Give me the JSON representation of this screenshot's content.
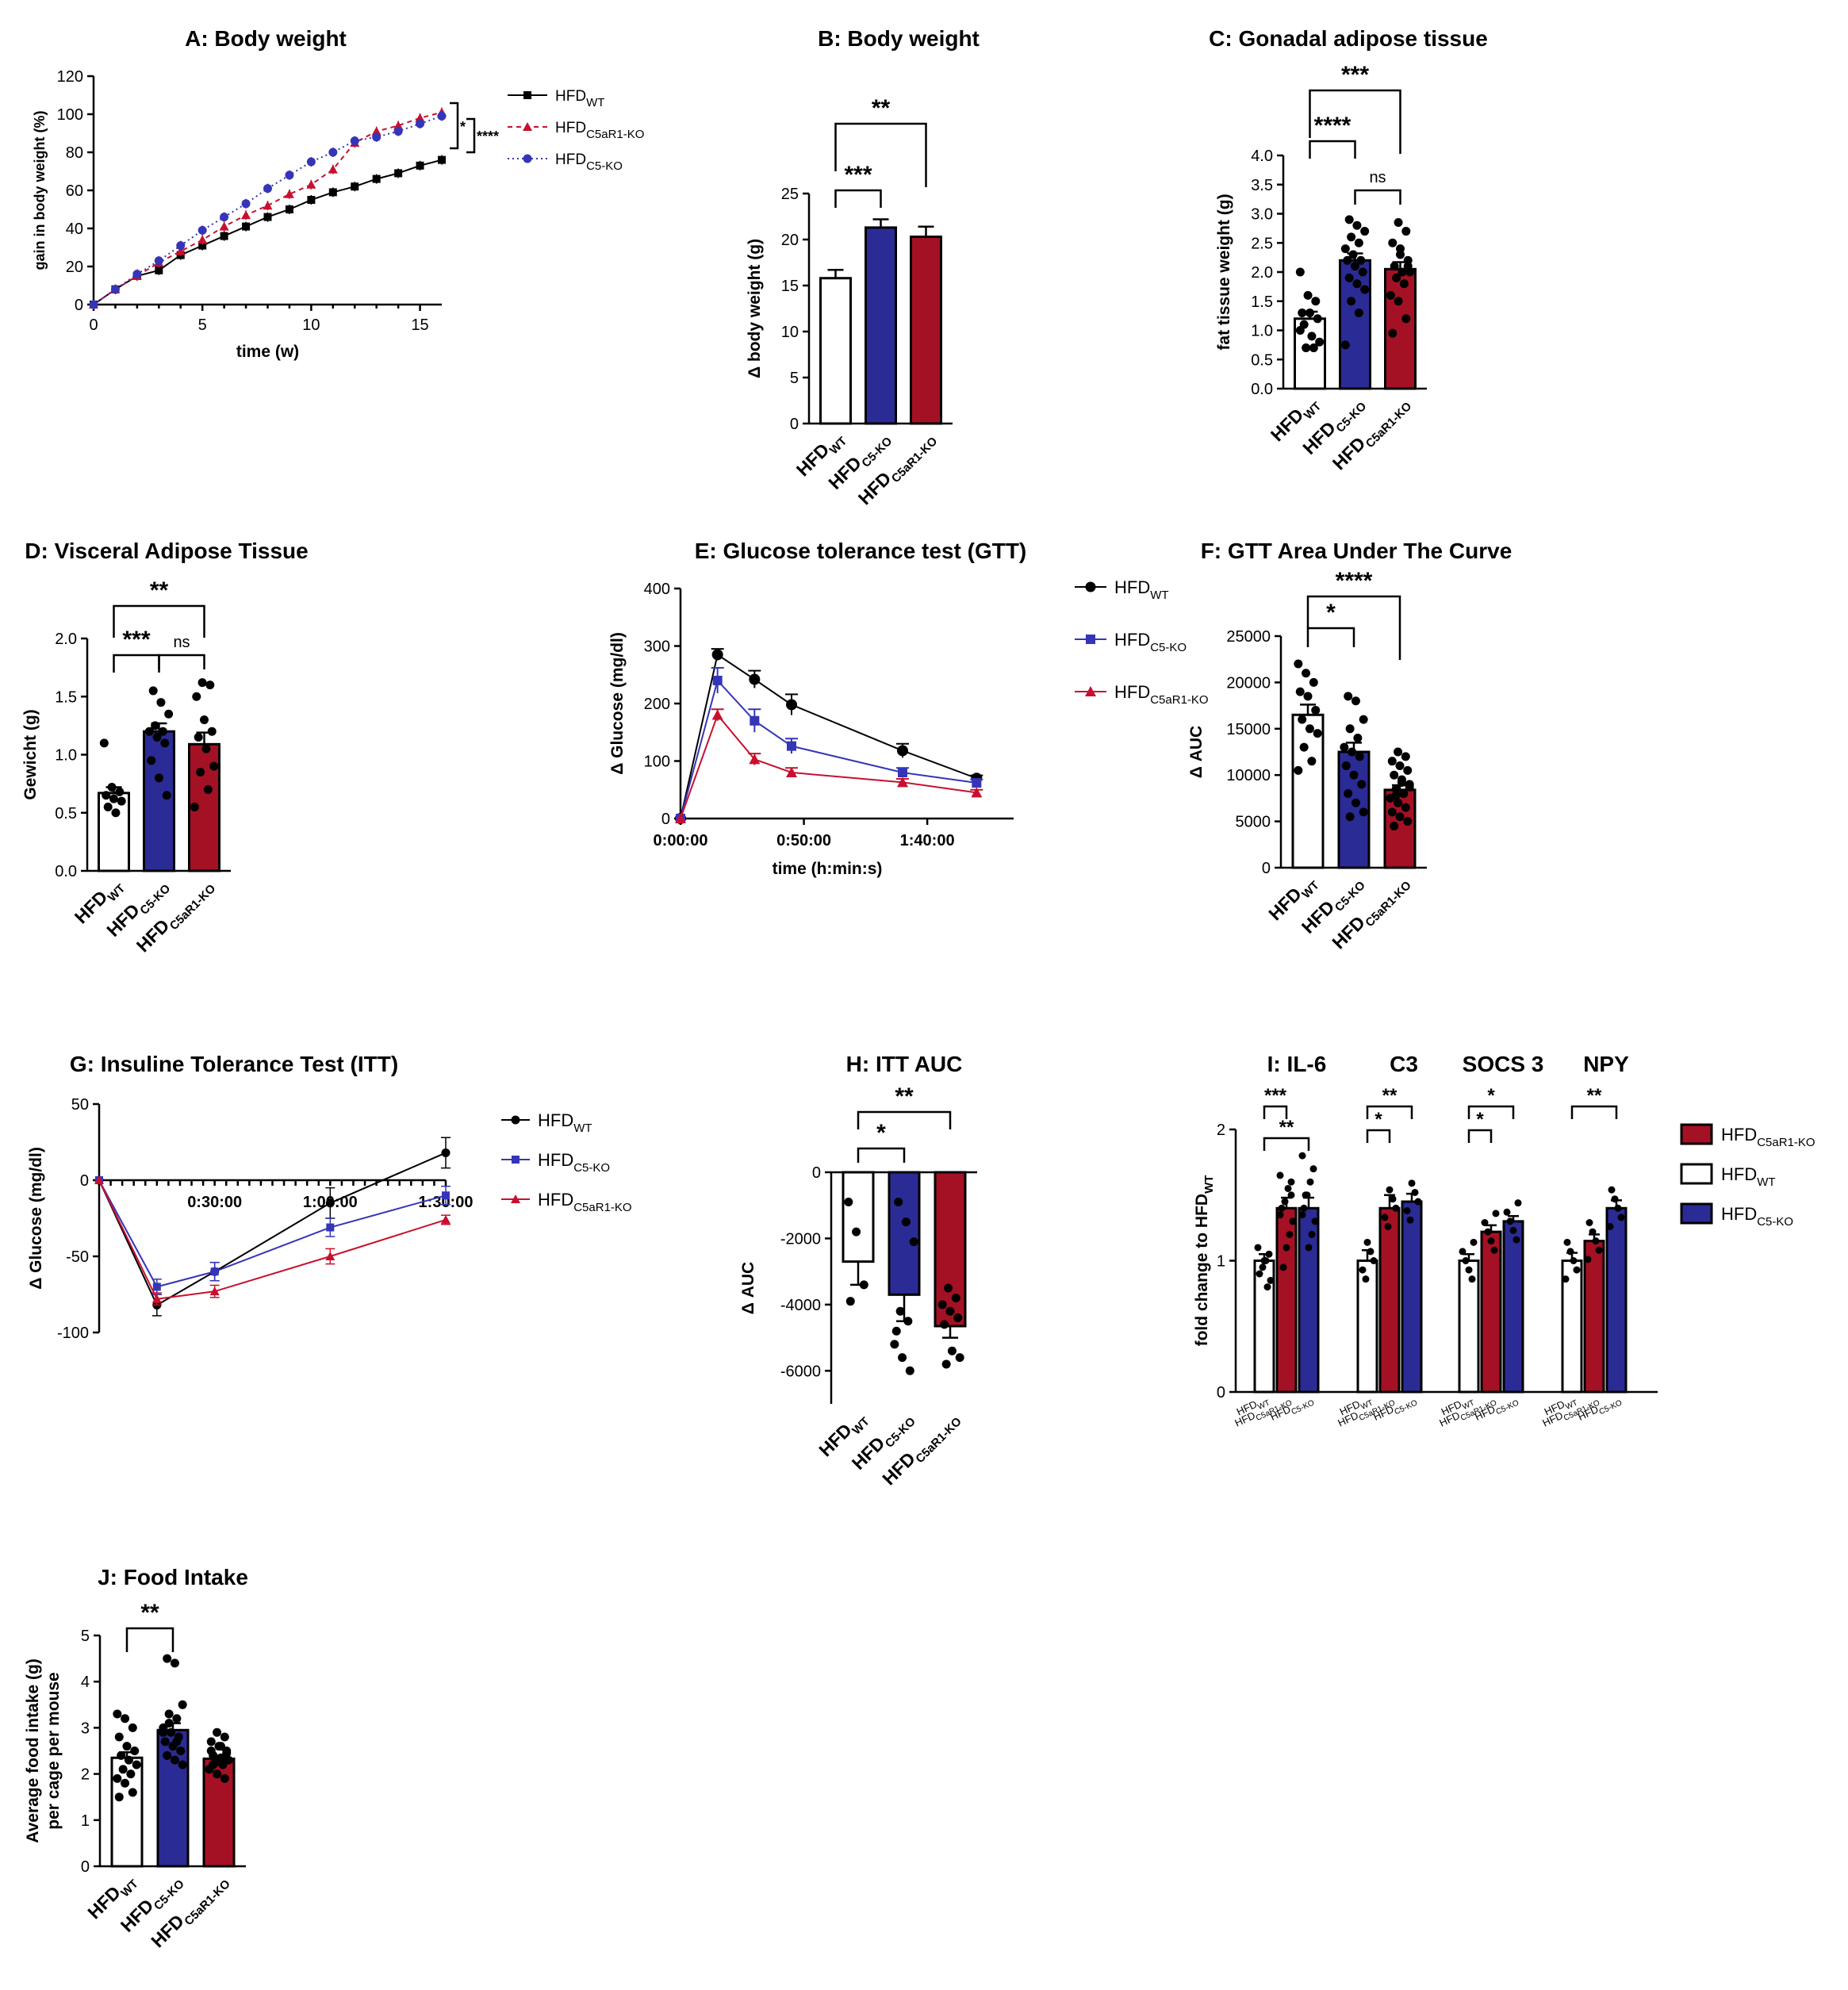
{
  "colors": {
    "wt": "#ffffff",
    "c5": "#2b2b96",
    "c5ar1": "#a51124",
    "wt_line": "#000000",
    "c5_line": "#3535b8",
    "c5ar1_line": "#c8102e"
  },
  "chart_data": [
    {
      "id": "A",
      "type": "line",
      "title": "A: Body weight",
      "xlabel": "time (w)",
      "ylabel": "gain in body weight (%)",
      "xlim": [
        0,
        16
      ],
      "ylim": [
        0,
        120
      ],
      "xticks": [
        "0",
        "5",
        "10",
        "15"
      ],
      "yticks": [
        "0",
        "20",
        "40",
        "60",
        "80",
        "100",
        "120"
      ],
      "x": [
        0,
        1,
        2,
        3,
        4,
        5,
        6,
        7,
        8,
        9,
        10,
        11,
        12,
        13,
        14,
        15,
        16
      ],
      "series": [
        {
          "name": "HFD",
          "sub": "WT",
          "color": "#000000",
          "marker": "square",
          "dash": "",
          "values": [
            0,
            8,
            15,
            18,
            26,
            31,
            36,
            41,
            46,
            50,
            55,
            59,
            62,
            66,
            69,
            73,
            76
          ]
        },
        {
          "name": "HFD",
          "sub": "C5aR1-KO",
          "color": "#c8102e",
          "marker": "triangle",
          "dash": "6,5",
          "values": [
            0,
            8,
            15,
            22,
            28,
            34,
            41,
            47,
            52,
            58,
            63,
            71,
            85,
            91,
            94,
            98,
            101
          ]
        },
        {
          "name": "HFD",
          "sub": "C5-KO",
          "color": "#3535b8",
          "marker": "circle",
          "dash": "2,4",
          "values": [
            0,
            8,
            16,
            23,
            31,
            39,
            46,
            53,
            61,
            68,
            75,
            80,
            86,
            88,
            91,
            95,
            99
          ]
        }
      ],
      "significance": [
        "*",
        "****"
      ]
    },
    {
      "id": "B",
      "type": "bar",
      "title": "B: Body weight",
      "ylabel": "Δ body weight (g)",
      "ylim": [
        0,
        25
      ],
      "yticks": [
        "0",
        "5",
        "10",
        "15",
        "20",
        "25"
      ],
      "categories": [
        {
          "name": "HFD",
          "sub": "WT"
        },
        {
          "name": "HFD",
          "sub": "C5-KO"
        },
        {
          "name": "HFD",
          "sub": "C5aR1-KO"
        }
      ],
      "values": [
        15.8,
        21.3,
        20.3
      ],
      "errors": [
        0.9,
        0.9,
        1.1
      ],
      "significance": [
        {
          "label": "***"
        },
        {
          "label": "**"
        }
      ]
    },
    {
      "id": "C",
      "type": "bar",
      "title": "C: Gonadal adipose tissue",
      "ylabel": "fat tissue weight (g)",
      "ylim": [
        0,
        4.0
      ],
      "yticks": [
        "0.0",
        "0.5",
        "1.0",
        "1.5",
        "2.0",
        "2.5",
        "3.0",
        "3.5",
        "4.0"
      ],
      "categories": [
        {
          "name": "HFD",
          "sub": "WT"
        },
        {
          "name": "HFD",
          "sub": "C5-KO"
        },
        {
          "name": "HFD",
          "sub": "C5aR1-KO"
        }
      ],
      "values": [
        1.2,
        2.2,
        2.05
      ],
      "errors": [
        0.12,
        0.12,
        0.12
      ],
      "points": [
        [
          2.0,
          1.6,
          1.5,
          1.3,
          1.3,
          1.2,
          1.1,
          0.9,
          0.8,
          0.7,
          0.7,
          1.0
        ],
        [
          2.9,
          2.8,
          2.7,
          2.6,
          2.5,
          2.4,
          2.3,
          2.2,
          2.2,
          2.1,
          2.0,
          1.9,
          1.8,
          1.7,
          1.5,
          1.3,
          0.75
        ],
        [
          2.85,
          2.7,
          2.5,
          2.4,
          2.2,
          2.1,
          2.0,
          2.0,
          1.9,
          1.8,
          1.6,
          1.5,
          1.2,
          0.95,
          2.3,
          2.1
        ]
      ],
      "significance": [
        {
          "label": "****"
        },
        {
          "label": "ns"
        },
        {
          "label": "***"
        }
      ]
    },
    {
      "id": "D",
      "type": "bar",
      "title": "D: Visceral Adipose Tissue",
      "ylabel": "Gewicht (g)",
      "ylim": [
        0,
        2.0
      ],
      "yticks": [
        "0.0",
        "0.5",
        "1.0",
        "1.5",
        "2.0"
      ],
      "categories": [
        {
          "name": "HFD",
          "sub": "WT"
        },
        {
          "name": "HFD",
          "sub": "C5-KO"
        },
        {
          "name": "HFD",
          "sub": "C5aR1-KO"
        }
      ],
      "values": [
        0.67,
        1.2,
        1.09
      ],
      "errors": [
        0.05,
        0.07,
        0.1
      ],
      "points": [
        [
          1.1,
          0.72,
          0.68,
          0.65,
          0.62,
          0.6,
          0.55,
          0.5
        ],
        [
          1.55,
          1.45,
          1.35,
          1.25,
          1.2,
          1.2,
          1.15,
          1.1,
          0.95,
          0.8,
          0.65
        ],
        [
          1.62,
          1.6,
          1.5,
          1.3,
          1.2,
          1.15,
          1.05,
          0.9,
          0.85,
          0.7,
          0.55
        ]
      ],
      "significance": [
        {
          "label": "***"
        },
        {
          "label": "ns"
        },
        {
          "label": "**"
        }
      ]
    },
    {
      "id": "E",
      "type": "line",
      "title": "E: Glucose tolerance test (GTT)",
      "xlabel": "time (h:min:s)",
      "ylabel": "Δ Glucose (mg/dl)",
      "xlim": [
        0,
        135
      ],
      "ylim": [
        0,
        400
      ],
      "xticks": [
        "0:00:00",
        "0:50:00",
        "1:40:00"
      ],
      "yticks": [
        "0",
        "100",
        "200",
        "300",
        "400"
      ],
      "x": [
        0,
        15,
        30,
        45,
        60,
        90,
        120
      ],
      "series": [
        {
          "name": "HFD",
          "sub": "WT",
          "color": "#000000",
          "marker": "circle",
          "values": [
            0,
            285,
            242,
            198,
            null,
            118,
            70
          ],
          "errors": [
            0,
            10,
            15,
            18,
            0,
            12,
            5
          ]
        },
        {
          "name": "HFD",
          "sub": "C5-KO",
          "color": "#3535b8",
          "marker": "square",
          "values": [
            0,
            240,
            170,
            126,
            null,
            80,
            62
          ],
          "errors": [
            0,
            22,
            20,
            13,
            0,
            8,
            6
          ]
        },
        {
          "name": "HFD",
          "sub": "C5aR1-KO",
          "color": "#c8102e",
          "marker": "triangle",
          "values": [
            0,
            180,
            103,
            80,
            null,
            63,
            45
          ],
          "errors": [
            0,
            10,
            10,
            8,
            0,
            6,
            5
          ]
        }
      ]
    },
    {
      "id": "F",
      "type": "bar",
      "title": "F: GTT Area Under The Curve",
      "ylabel": "Δ AUC",
      "ylim": [
        0,
        25000
      ],
      "yticks": [
        "0",
        "5000",
        "10000",
        "15000",
        "20000",
        "25000"
      ],
      "categories": [
        {
          "name": "HFD",
          "sub": "WT"
        },
        {
          "name": "HFD",
          "sub": "C5-KO"
        },
        {
          "name": "HFD",
          "sub": "C5aR1-KO"
        }
      ],
      "values": [
        16500,
        12500,
        8400
      ],
      "errors": [
        1100,
        1000,
        500
      ],
      "points": [
        [
          22000,
          21000,
          20000,
          19000,
          18500,
          17000,
          16000,
          15000,
          14500,
          13000,
          11500,
          10500
        ],
        [
          18500,
          18000,
          16000,
          15000,
          14000,
          13000,
          12500,
          12000,
          11000,
          10000,
          9000,
          8000,
          7000,
          6000,
          5500
        ],
        [
          12500,
          12000,
          11500,
          11000,
          10500,
          10000,
          9500,
          9000,
          8500,
          8000,
          7500,
          7000,
          6500,
          6000,
          5500,
          5000,
          4500,
          9200,
          8700,
          7800
        ]
      ],
      "significance": [
        {
          "label": "*"
        },
        {
          "label": "****"
        }
      ]
    },
    {
      "id": "G",
      "type": "line",
      "title": "G: Insuline Tolerance Test (ITT)",
      "ylabel": "Δ Glucose (mg/dl)",
      "xlim": [
        0,
        90
      ],
      "ylim": [
        -100,
        50
      ],
      "xticks": [
        "0:30:00",
        "1:00:00",
        "1:30:00"
      ],
      "yticks": [
        "-100",
        "-50",
        "0",
        "50"
      ],
      "x": [
        0,
        15,
        30,
        60,
        90
      ],
      "series": [
        {
          "name": "HFD",
          "sub": "WT",
          "color": "#000000",
          "marker": "circle",
          "values": [
            0,
            -82,
            -60,
            -15,
            18
          ],
          "errors": [
            0,
            7,
            6,
            10,
            10
          ]
        },
        {
          "name": "HFD",
          "sub": "C5-KO",
          "color": "#3535b8",
          "marker": "square",
          "values": [
            0,
            -70,
            -60,
            -31,
            -10
          ],
          "errors": [
            0,
            5,
            6,
            6,
            6
          ]
        },
        {
          "name": "HFD",
          "sub": "C5aR1-KO",
          "color": "#c8102e",
          "marker": "triangle",
          "values": [
            0,
            -78,
            -73,
            -50,
            -26
          ],
          "errors": [
            0,
            4,
            4,
            5,
            3
          ]
        }
      ]
    },
    {
      "id": "H",
      "type": "bar",
      "title": "H: ITT AUC",
      "ylabel": "Δ AUC",
      "ylim": [
        -7000,
        0
      ],
      "yticks": [
        "-6000",
        "-4000",
        "-2000",
        "0"
      ],
      "categories": [
        {
          "name": "HFD",
          "sub": "WT"
        },
        {
          "name": "HFD",
          "sub": "C5-KO"
        },
        {
          "name": "HFD",
          "sub": "C5aR1-KO"
        }
      ],
      "values": [
        -2700,
        -3700,
        -4650
      ],
      "errors": [
        700,
        800,
        350
      ],
      "points": [
        [
          -900,
          -1800,
          -3400,
          -3900
        ],
        [
          -900,
          -1500,
          -2100,
          -4200,
          -4500,
          -5200,
          -5600,
          -6000,
          -4800
        ],
        [
          -3500,
          -3800,
          -4000,
          -4200,
          -4400,
          -4600,
          -5400,
          -5600,
          -5800
        ]
      ],
      "significance": [
        {
          "label": "*"
        },
        {
          "label": "**"
        }
      ]
    },
    {
      "id": "I",
      "type": "bar",
      "title": "I: IL-6",
      "group_titles": [
        "I: IL-6",
        "C3",
        "SOCS 3",
        "NPY"
      ],
      "ylabel": "fold change to HFD",
      "ylabel_sub": "WT",
      "ylim": [
        0,
        2
      ],
      "yticks": [
        "0",
        "1",
        "2"
      ],
      "group_categories": [
        {
          "name": "HFD",
          "sub": "WT"
        },
        {
          "name": "HFD",
          "sub": "C5aR1-KO"
        },
        {
          "name": "HFD",
          "sub": "C5-KO"
        }
      ],
      "groups": [
        {
          "values": [
            1.0,
            1.4,
            1.4
          ],
          "errors": [
            0.05,
            0.08,
            0.08
          ],
          "sig": [
            "***",
            "**"
          ]
        },
        {
          "values": [
            1.0,
            1.4,
            1.45
          ],
          "errors": [
            0.08,
            0.1,
            0.06
          ],
          "sig": [
            "*",
            "**"
          ]
        },
        {
          "values": [
            1.0,
            1.22,
            1.3
          ],
          "errors": [
            0.05,
            0.05,
            0.04
          ],
          "sig": [
            "*",
            "*"
          ]
        },
        {
          "values": [
            1.0,
            1.15,
            1.4
          ],
          "errors": [
            0.06,
            0.05,
            0.06
          ],
          "sig": [
            "",
            "**"
          ]
        }
      ],
      "legend": [
        {
          "name": "HFD",
          "sub": "C5aR1-KO",
          "color": "#a51124"
        },
        {
          "name": "HFD",
          "sub": "WT",
          "color": "#ffffff"
        },
        {
          "name": "HFD",
          "sub": "C5-KO",
          "color": "#2b2b96"
        }
      ]
    },
    {
      "id": "J",
      "type": "bar",
      "title": "J: Food Intake",
      "ylabel": "Average food intake (g)",
      "ylabel2": "per cage per mouse",
      "ylim": [
        0,
        5
      ],
      "yticks": [
        "0",
        "1",
        "2",
        "3",
        "4",
        "5"
      ],
      "categories": [
        {
          "name": "HFD",
          "sub": "WT"
        },
        {
          "name": "HFD",
          "sub": "C5-KO"
        },
        {
          "name": "HFD",
          "sub": "C5aR1-KO"
        }
      ],
      "values": [
        2.35,
        2.95,
        2.33
      ],
      "errors": [
        0.12,
        0.15,
        0.06
      ],
      "points": [
        [
          3.3,
          3.2,
          3.0,
          2.8,
          2.6,
          2.5,
          2.4,
          2.3,
          2.2,
          2.1,
          2.0,
          1.9,
          1.8,
          1.6,
          1.5
        ],
        [
          4.5,
          4.4,
          3.5,
          3.3,
          3.2,
          3.0,
          2.9,
          2.8,
          2.7,
          2.6,
          2.5,
          2.4,
          2.3,
          2.2,
          3.1,
          2.7,
          2.9
        ],
        [
          2.9,
          2.8,
          2.7,
          2.6,
          2.5,
          2.4,
          2.35,
          2.3,
          2.25,
          2.2,
          2.1,
          2.0,
          1.9,
          2.5,
          2.3,
          2.45,
          2.2,
          2.6
        ]
      ],
      "significance": [
        {
          "label": "**"
        }
      ]
    }
  ]
}
